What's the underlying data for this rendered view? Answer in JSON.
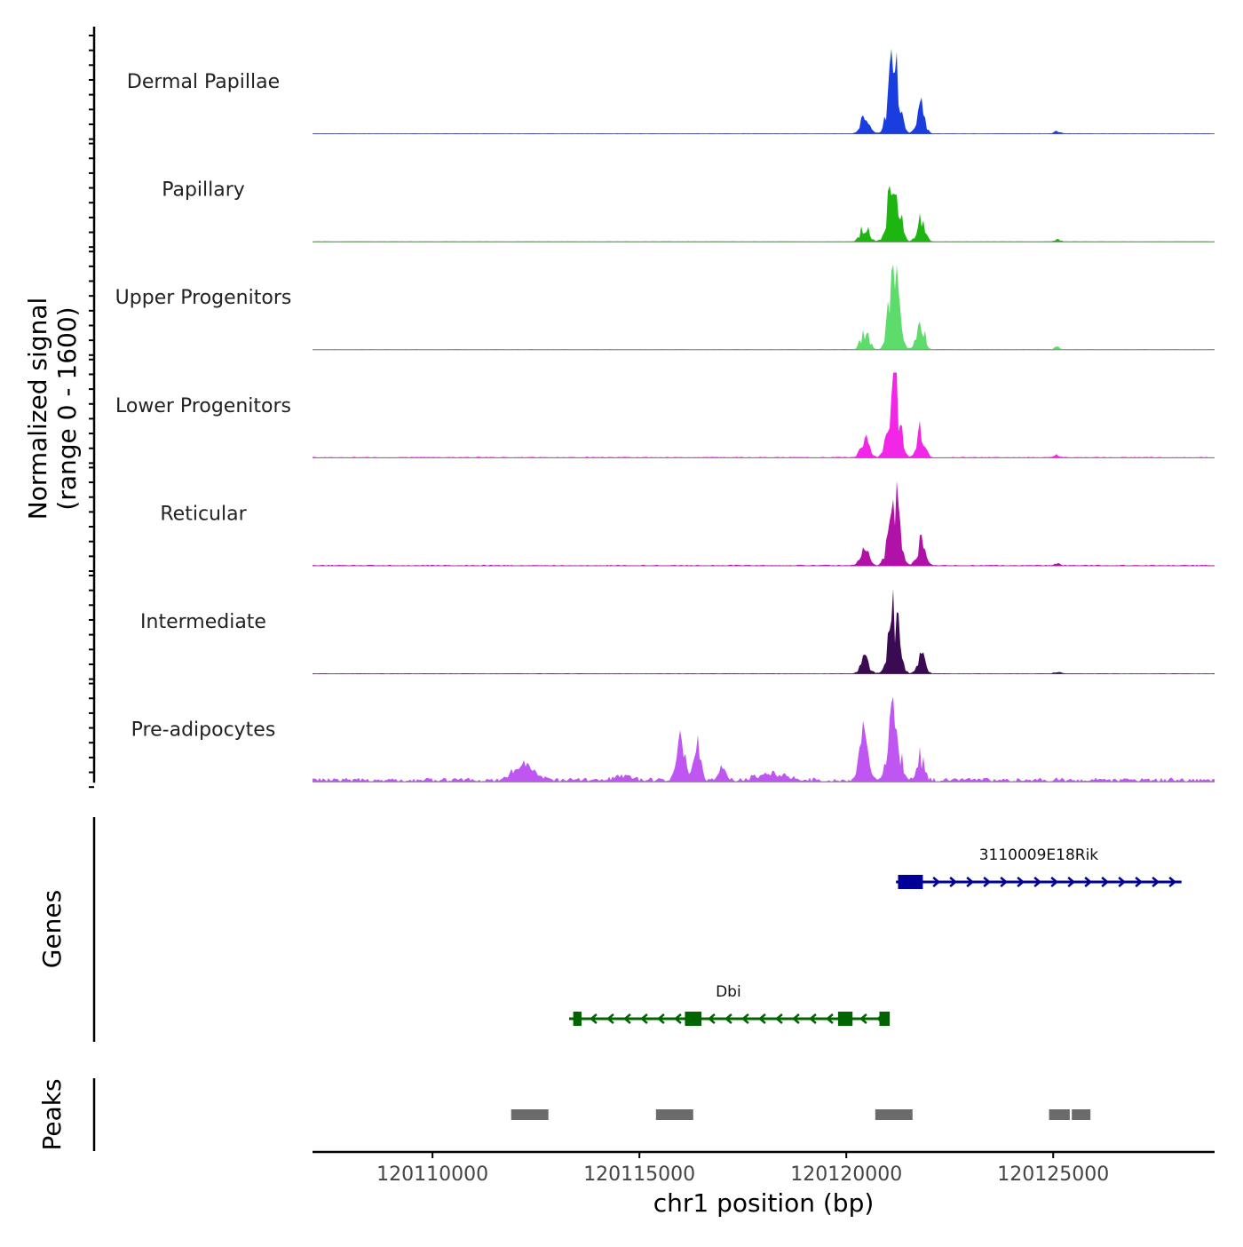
{
  "chart_data": {
    "type": "area",
    "title": "",
    "ylabel_line1": "Normalized signal",
    "ylabel_line2": "(range 0 - 1600)",
    "xlabel": "chr1 position (bp)",
    "xlim": [
      120107100,
      120128900
    ],
    "ylim": [
      0,
      1600
    ],
    "x_ticks": [
      120110000,
      120115000,
      120120000,
      120125000
    ],
    "x_tick_labels": [
      "120110000",
      "120115000",
      "120120000",
      "120125000"
    ],
    "peak_shapes": [
      {
        "name": "main",
        "center": 120121150,
        "width": 520,
        "height": 1.0
      },
      {
        "name": "left shoulder",
        "center": 120120450,
        "width": 420,
        "height": 0.22
      },
      {
        "name": "right shoulder",
        "center": 120121800,
        "width": 380,
        "height": 0.35
      },
      {
        "name": "far right",
        "center": 120125100,
        "width": 300,
        "height": 0.03
      }
    ],
    "tracks": [
      {
        "name": "Dermal Papillae",
        "color": "#1a3de0",
        "peak_scale": 1.0,
        "background": 0.01
      },
      {
        "name": "Papillary",
        "color": "#1db510",
        "peak_scale": 0.92,
        "background": 0.01
      },
      {
        "name": "Upper Progenitors",
        "color": "#5edc6b",
        "peak_scale": 1.0,
        "background": 0.01
      },
      {
        "name": "Lower Progenitors",
        "color": "#f126e6",
        "peak_scale": 1.0,
        "background": 0.02
      },
      {
        "name": "Reticular",
        "color": "#b011a6",
        "peak_scale": 0.9,
        "background": 0.02
      },
      {
        "name": "Intermediate",
        "color": "#3a0b52",
        "peak_scale": 0.82,
        "background": 0.01
      },
      {
        "name": "Pre-adipocytes",
        "color": "#c056f2",
        "peak_scale": 0.88,
        "background": 0.08
      }
    ],
    "genes": [
      {
        "name": "3110009E18Rik",
        "strand": "+",
        "start": 120121200,
        "end": 120128100,
        "color": "#000096",
        "exons": [
          [
            120121250,
            120121850
          ]
        ]
      },
      {
        "name": "Dbi",
        "strand": "-",
        "start": 120113300,
        "end": 120121000,
        "color": "#006400",
        "exons": [
          [
            120113400,
            120113600
          ],
          [
            120116100,
            120116500
          ],
          [
            120119800,
            120120150
          ],
          [
            120120800,
            120121050
          ]
        ]
      }
    ],
    "peaks": [
      {
        "start": 120111900,
        "end": 120112800
      },
      {
        "start": 120115400,
        "end": 120116300
      },
      {
        "start": 120120700,
        "end": 120121600
      },
      {
        "start": 120124900,
        "end": 120125400
      },
      {
        "start": 120125450,
        "end": 120125900
      }
    ],
    "panel_labels": {
      "genes": "Genes",
      "peaks": "Peaks"
    }
  }
}
